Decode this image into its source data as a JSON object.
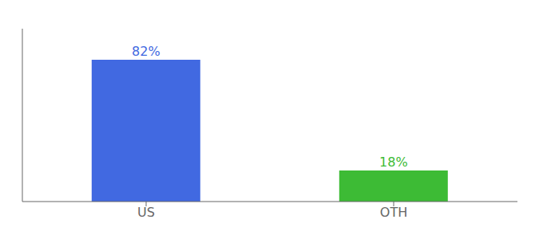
{
  "chart_data": {
    "type": "bar",
    "categories": [
      "US",
      "OTH"
    ],
    "values": [
      82,
      18
    ],
    "value_labels": [
      "82%",
      "18%"
    ],
    "colors": [
      "#4169e1",
      "#3dbb35"
    ],
    "ylim": [
      0,
      100
    ],
    "tick_labels": "x",
    "data_labels": true,
    "grid": false
  }
}
